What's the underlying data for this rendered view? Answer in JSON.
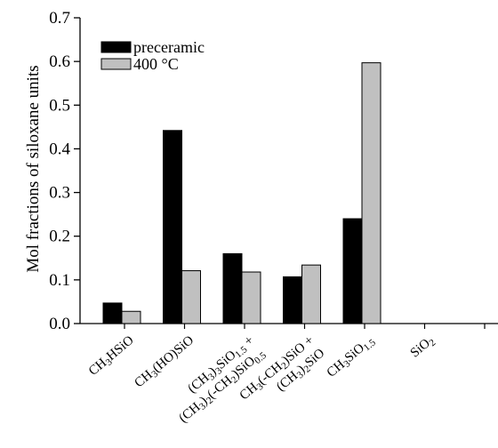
{
  "chart_data": {
    "type": "bar",
    "ylabel": "Mol fractions of siloxane units",
    "xlabel": "",
    "ylim": [
      0,
      0.7
    ],
    "yticks": [
      "0.0",
      "0.1",
      "0.2",
      "0.3",
      "0.4",
      "0.5",
      "0.6",
      "0.7"
    ],
    "categories": [
      "CH3HSiO",
      "CH3(HO)SiO",
      "(CH3)3SiO1.5 + (CH3)2(-CH2)SiO0.5",
      "CH3(-CH2)SiO + (CH3)2SiO",
      "CH3SiO1.5",
      "SiO2"
    ],
    "series": [
      {
        "name": "preceramic",
        "color": "#000000",
        "values": [
          0.047,
          0.442,
          0.16,
          0.107,
          0.24,
          0.0
        ]
      },
      {
        "name": "400 °C",
        "color": "#c0c0c0",
        "values": [
          0.028,
          0.121,
          0.118,
          0.134,
          0.597,
          0.0
        ]
      }
    ],
    "legend_position": "top-left",
    "grid": false
  }
}
